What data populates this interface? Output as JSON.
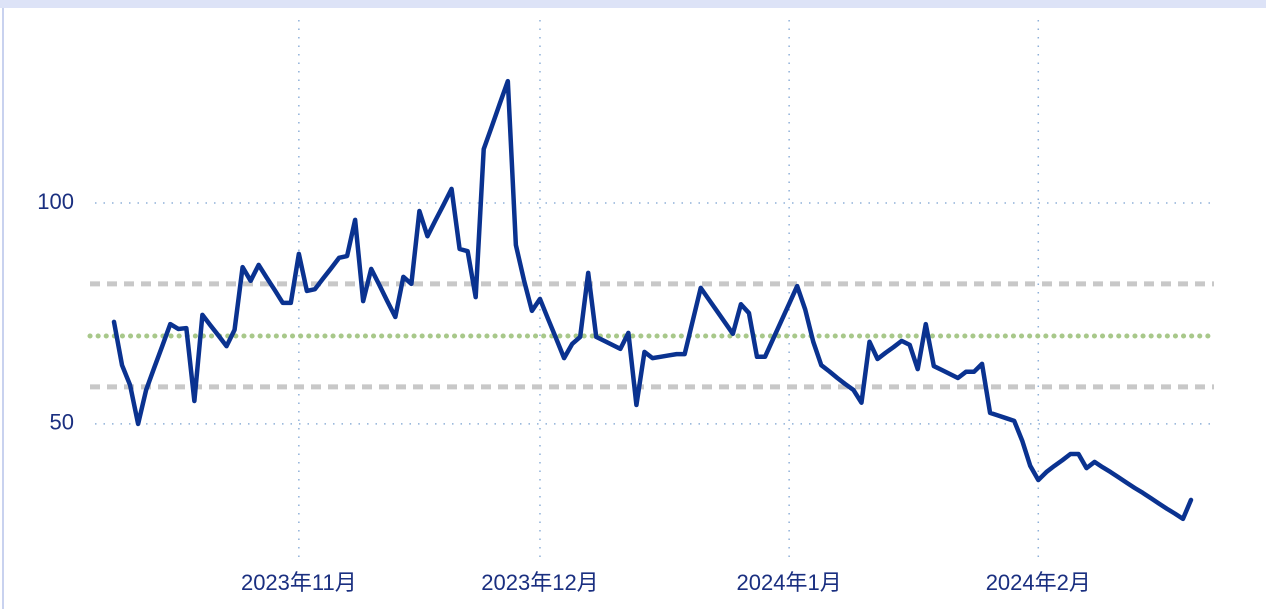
{
  "chart_data": {
    "type": "line",
    "categories": [
      null,
      null,
      null,
      null,
      null,
      null,
      null,
      null,
      null,
      null,
      null,
      null,
      null,
      null,
      null,
      null,
      null,
      null,
      null,
      null,
      null,
      null,
      null,
      "2023年11月",
      null,
      null,
      null,
      null,
      null,
      null,
      null,
      null,
      null,
      null,
      null,
      null,
      null,
      null,
      null,
      null,
      null,
      null,
      null,
      null,
      null,
      null,
      null,
      null,
      null,
      null,
      null,
      null,
      null,
      "2023年12月",
      null,
      null,
      null,
      null,
      null,
      null,
      null,
      null,
      null,
      null,
      null,
      null,
      null,
      null,
      null,
      null,
      null,
      null,
      null,
      null,
      null,
      null,
      null,
      null,
      null,
      null,
      null,
      null,
      null,
      null,
      "2024年1月",
      null,
      null,
      null,
      null,
      null,
      null,
      null,
      null,
      null,
      null,
      null,
      null,
      null,
      null,
      null,
      null,
      null,
      null,
      null,
      null,
      null,
      null,
      null,
      null,
      null,
      null,
      null,
      null,
      null,
      null,
      "2024年2月",
      null,
      null,
      null,
      null,
      null,
      null,
      null,
      null,
      null,
      null,
      null,
      null,
      null,
      null,
      null,
      null,
      null,
      null,
      null
    ],
    "series": [
      {
        "color": "#0a3290",
        "values": [
          73.1,
          63.3,
          58.8,
          50,
          57.7,
          62.7,
          67.6,
          72.6,
          71.5,
          71.7,
          55.2,
          74.7,
          72.3,
          70.0,
          67.6,
          71.3,
          85.5,
          82.4,
          86,
          83.1,
          80.3,
          77.4,
          77.4,
          88.5,
          80.1,
          80.5,
          82.9,
          85.2,
          87.6,
          88,
          96.2,
          77.8,
          85.1,
          81.5,
          77.8,
          74.2,
          83.3,
          81.7,
          98.2,
          92.5,
          96.1,
          99.6,
          103.2,
          89.6,
          89.1,
          78.7,
          112.2,
          117.3,
          122.5,
          127.6,
          90.5,
          82.6,
          75.6,
          78.3,
          73.8,
          69.4,
          64.9,
          68.1,
          69.7,
          84.2,
          69.7,
          68.8,
          67.9,
          67,
          70.6,
          54.3,
          66.3,
          64.9,
          65.2,
          65.5,
          65.8,
          65.8,
          73.3,
          80.8,
          78.2,
          75.6,
          73.0,
          70.4,
          77.1,
          75.1,
          65.2,
          65.2,
          69.2,
          73.2,
          77.2,
          81.2,
          75.9,
          68.6,
          63.3,
          61.9,
          60.4,
          59,
          57.7,
          54.8,
          68.6,
          64.7,
          66.1,
          67.4,
          68.8,
          67.9,
          62.4,
          72.6,
          63.1,
          62.2,
          61.3,
          60.4,
          61.8,
          61.8,
          63.6,
          52.5,
          51.9,
          51.3,
          50.7,
          46.2,
          40.5,
          37.3,
          39.1,
          40.5,
          41.8,
          43.2,
          43.2,
          40,
          41.4,
          40.2,
          39.1,
          37.9,
          36.7,
          35.5,
          34.4,
          33.2,
          32.0,
          30.8,
          29.7,
          28.5,
          32.8
        ]
      }
    ],
    "reference_lines": [
      {
        "value": 81.7,
        "color": "#c8c8c8",
        "style": "dashed"
      },
      {
        "value": 69.9,
        "color": "#a8c88a",
        "style": "dotted"
      },
      {
        "value": 58.4,
        "color": "#c8c8c8",
        "style": "dashed"
      }
    ],
    "ylim": [
      19.2,
      143.7
    ],
    "yticks": [
      50,
      100
    ],
    "grid": true
  }
}
